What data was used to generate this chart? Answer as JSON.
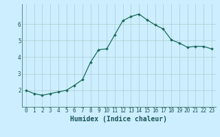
{
  "xlabel": "Humidex (Indice chaleur)",
  "ylabel": "",
  "x": [
    0,
    1,
    2,
    3,
    4,
    5,
    6,
    7,
    8,
    9,
    10,
    11,
    12,
    13,
    14,
    15,
    16,
    17,
    18,
    19,
    20,
    21,
    22,
    23
  ],
  "y": [
    2.0,
    1.8,
    1.7,
    1.8,
    1.9,
    2.0,
    2.3,
    2.65,
    3.7,
    4.45,
    4.5,
    5.35,
    6.2,
    6.45,
    6.6,
    6.25,
    5.95,
    5.7,
    5.05,
    4.85,
    4.6,
    4.65,
    4.65,
    4.5
  ],
  "line_color": "#1a6b5a",
  "marker": "D",
  "marker_size": 2.0,
  "line_width": 0.9,
  "bg_color": "#cceeff",
  "grid_color": "#aacccc",
  "tick_label_color": "#1a5555",
  "axis_label_color": "#1a5555",
  "ylim": [
    1.0,
    7.2
  ],
  "yticks": [
    2,
    3,
    4,
    5,
    6
  ],
  "xticks": [
    0,
    1,
    2,
    3,
    4,
    5,
    6,
    7,
    8,
    9,
    10,
    11,
    12,
    13,
    14,
    15,
    16,
    17,
    18,
    19,
    20,
    21,
    22,
    23
  ],
  "title_fontsize": 7,
  "axis_label_fontsize": 7,
  "tick_fontsize": 5.5
}
